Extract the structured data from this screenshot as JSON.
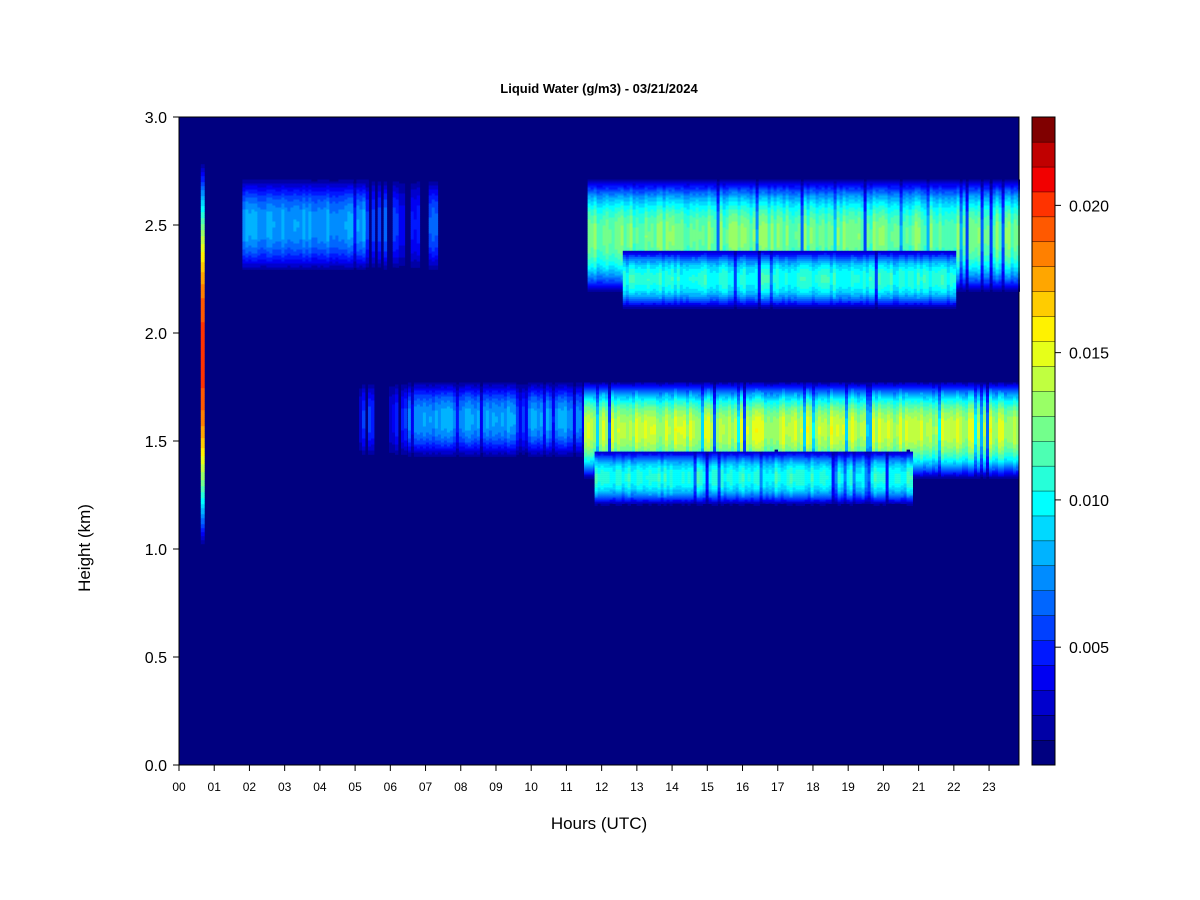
{
  "chart_data": {
    "type": "heatmap",
    "title": "Liquid Water (g/m3) - 03/21/2024",
    "xlabel": "Hours (UTC)",
    "ylabel": "Height (km)",
    "xlim": [
      0,
      23.85
    ],
    "ylim": [
      0,
      3.0
    ],
    "x_tick_labels": [
      "00",
      "01",
      "02",
      "03",
      "04",
      "05",
      "06",
      "07",
      "08",
      "09",
      "10",
      "11",
      "12",
      "13",
      "14",
      "15",
      "16",
      "17",
      "18",
      "19",
      "20",
      "21",
      "22",
      "23"
    ],
    "y_ticks": [
      0.0,
      0.5,
      1.0,
      1.5,
      2.0,
      2.5,
      3.0
    ],
    "y_tick_labels": [
      "0.0",
      "0.5",
      "1.0",
      "1.5",
      "2.0",
      "2.5",
      "3.0"
    ],
    "colorbar": {
      "min": 0.001,
      "max": 0.023,
      "levels": 22,
      "ticks": [
        0.005,
        0.01,
        0.015,
        0.02
      ],
      "tick_labels": [
        "0.005",
        "0.010",
        "0.015",
        "0.020"
      ],
      "colors": [
        "#000080",
        "#0000A6",
        "#0000CD",
        "#0000F2",
        "#0018FF",
        "#0040FF",
        "#0066FF",
        "#008CFF",
        "#00B3FF",
        "#00D9FF",
        "#00FFFF",
        "#26FFD9",
        "#4DFFB3",
        "#73FF8C",
        "#99FF66",
        "#C0FF40",
        "#E6FF19",
        "#FFF200",
        "#FFCC00",
        "#FFA600",
        "#FF8000",
        "#FF5900",
        "#FF3300",
        "#F20000",
        "#C00000",
        "#800000"
      ]
    },
    "background_color": "#000080",
    "cloud_layers": [
      {
        "name": "upper-layer-early",
        "x_start": 1.8,
        "x_end": 5.3,
        "y_center": 2.5,
        "y_half_width": 0.22,
        "peak_value": 0.0085,
        "segment": "dense"
      },
      {
        "name": "upper-layer-early-sparse",
        "x_start": 5.3,
        "x_end": 7.6,
        "y_center": 2.5,
        "y_half_width": 0.22,
        "peak_value": 0.007,
        "segment": "sparse"
      },
      {
        "name": "upper-layer-main",
        "x_start": 11.6,
        "x_end": 23.85,
        "y_center": 2.45,
        "y_half_width": 0.27,
        "peak_value": 0.0135,
        "segment": "dense"
      },
      {
        "name": "upper-layer-lower-lobe",
        "x_start": 12.6,
        "x_end": 22.0,
        "y_center": 2.25,
        "y_half_width": 0.14,
        "peak_value": 0.0115,
        "segment": "dense"
      },
      {
        "name": "lower-layer-sparse",
        "x_start": 4.6,
        "x_end": 6.5,
        "y_center": 1.6,
        "y_half_width": 0.18,
        "peak_value": 0.006,
        "segment": "sparse"
      },
      {
        "name": "lower-layer-ramp",
        "x_start": 6.5,
        "x_end": 11.5,
        "y_center": 1.6,
        "y_half_width": 0.18,
        "peak_value": 0.0085,
        "segment": "dense"
      },
      {
        "name": "lower-layer-main",
        "x_start": 11.5,
        "x_end": 23.85,
        "y_center": 1.55,
        "y_half_width": 0.23,
        "peak_value": 0.0155,
        "segment": "dense"
      },
      {
        "name": "lower-layer-bottom-lobe",
        "x_start": 11.8,
        "x_end": 20.8,
        "y_center": 1.33,
        "y_half_width": 0.13,
        "peak_value": 0.0115,
        "segment": "dense"
      },
      {
        "name": "spike-01utc",
        "x_start": 0.62,
        "x_end": 0.72,
        "y_center": 1.9,
        "y_half_width": 0.9,
        "peak_value": 0.02,
        "segment": "spike"
      }
    ]
  }
}
